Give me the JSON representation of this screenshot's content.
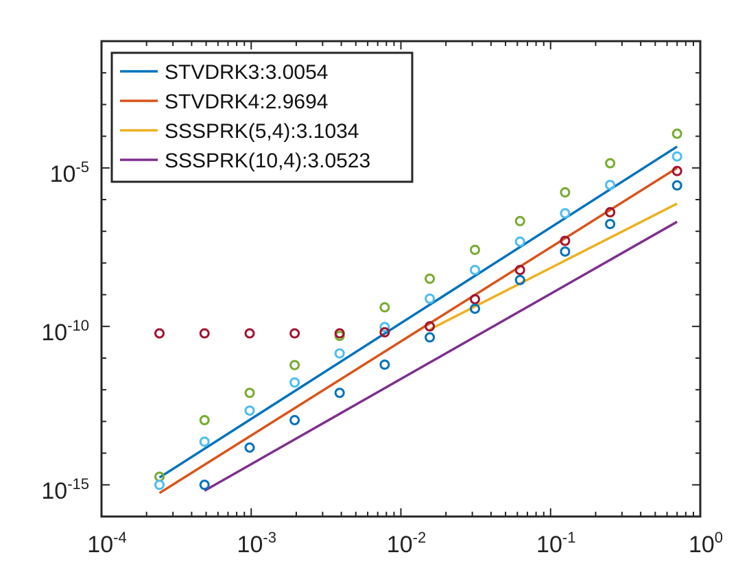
{
  "chart_data": {
    "type": "line",
    "xscale": "log",
    "yscale": "log",
    "xlim": [
      0.0001,
      1
    ],
    "ylim": [
      1e-16,
      0.1
    ],
    "grid": false,
    "legend_position": "top-left",
    "x_ticks": [
      {
        "value": 0.0001,
        "base": "10",
        "exp": "-4"
      },
      {
        "value": 0.001,
        "base": "10",
        "exp": "-3"
      },
      {
        "value": 0.01,
        "base": "10",
        "exp": "-2"
      },
      {
        "value": 0.1,
        "base": "10",
        "exp": "-1"
      },
      {
        "value": 1,
        "base": "10",
        "exp": "0"
      }
    ],
    "y_ticks": [
      {
        "value": 1e-15,
        "base": "10",
        "exp": "-15"
      },
      {
        "value": 1e-10,
        "base": "10",
        "exp": "-10"
      },
      {
        "value": 1e-05,
        "base": "10",
        "exp": "-5"
      }
    ],
    "series": [
      {
        "name": "STVDRK3:3.0054",
        "color": "#0072BD",
        "x": [
          0.000244,
          0.7
        ],
        "y": [
          1.7e-15,
          4.7e-05
        ]
      },
      {
        "name": "STVDRK4:2.9694",
        "color": "#D95319",
        "x": [
          0.000244,
          0.7
        ],
        "y": [
          5.5e-16,
          1e-05
        ]
      },
      {
        "name": "SSSPRK(5,4):3.1034",
        "color": "#EDB120",
        "x": [
          0.0156,
          0.7
        ],
        "y": [
          8e-11,
          7.5e-07
        ]
      },
      {
        "name": "SSSPRK(10,4):3.0523",
        "color": "#7E2F8E",
        "x": [
          0.000488,
          0.7
        ],
        "y": [
          6.5e-16,
          2e-07
        ]
      }
    ],
    "markers": [
      {
        "name": "green",
        "color": "#77AC30",
        "x": [
          0.000244,
          0.000488,
          0.000977,
          0.00195,
          0.0039,
          0.0078,
          0.0156,
          0.03125,
          0.0625,
          0.125,
          0.25,
          0.7
        ],
        "y": [
          1.8e-15,
          1.1e-13,
          8e-13,
          6e-12,
          5e-11,
          4e-10,
          3.2e-09,
          2.6e-08,
          2.1e-07,
          1.7e-06,
          1.4e-05,
          0.00012
        ]
      },
      {
        "name": "light-blue",
        "color": "#4DBEEE",
        "x": [
          0.000244,
          0.000488,
          0.000977,
          0.00195,
          0.0039,
          0.0078,
          0.0156,
          0.03125,
          0.0625,
          0.125,
          0.25,
          0.7
        ],
        "y": [
          1e-15,
          2.3e-14,
          2.2e-13,
          1.7e-12,
          1.4e-11,
          9.5e-11,
          7.5e-10,
          6e-09,
          4.7e-08,
          3.7e-07,
          2.9e-06,
          2.3e-05
        ]
      },
      {
        "name": "dark-red",
        "color": "#A2142F",
        "x": [
          0.000244,
          0.000488,
          0.000977,
          0.00195,
          0.0039,
          0.0078,
          0.0156,
          0.03125,
          0.0625,
          0.125,
          0.25,
          0.7
        ],
        "y": [
          6e-11,
          6e-11,
          6e-11,
          6e-11,
          6e-11,
          6.5e-11,
          1e-10,
          7.2e-10,
          6e-09,
          5e-08,
          4e-07,
          8e-06
        ]
      },
      {
        "name": "blue",
        "color": "#0072BD",
        "x": [
          0.000488,
          0.000977,
          0.00195,
          0.0039,
          0.0078,
          0.0156,
          0.03125,
          0.0625,
          0.125,
          0.25,
          0.7
        ],
        "y": [
          1e-15,
          1.5e-14,
          1.1e-13,
          8e-13,
          6.2e-12,
          4.5e-11,
          3.6e-10,
          2.9e-09,
          2.3e-08,
          1.7e-07,
          2.8e-06
        ]
      }
    ]
  }
}
